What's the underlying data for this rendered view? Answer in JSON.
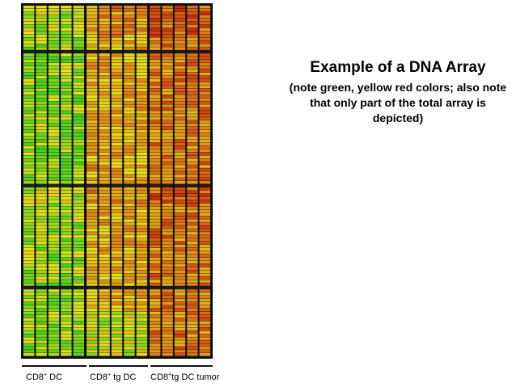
{
  "caption": {
    "title": "Example of a DNA Array",
    "note": "(note green, yellow red colors; also note that only part of the total array is depicted)"
  },
  "groups": [
    {
      "base": "CD8",
      "sup": "+",
      "rest": " DC"
    },
    {
      "base": "CD8",
      "sup": "+",
      "rest": " tg DC"
    },
    {
      "base": "CD8",
      "sup": "+",
      "rest": "tg DC tumor"
    }
  ],
  "heatmap": {
    "columns": 15,
    "rows": 110,
    "column_groups": [
      5,
      5,
      5
    ],
    "separator_rows": [
      14,
      56,
      88
    ],
    "colors": {
      "green": "#3ecf1f",
      "yellow": "#e8e41a",
      "orange": "#e08a18",
      "red": "#c8240c",
      "separator": "#1c1c1c"
    }
  }
}
